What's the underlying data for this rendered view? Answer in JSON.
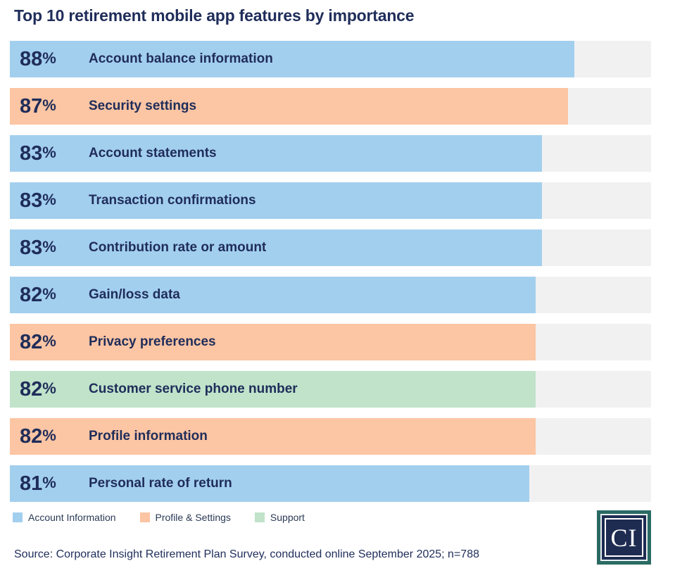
{
  "header": {
    "title": "Top 10 retirement mobile app features by importance"
  },
  "chart_data": {
    "type": "bar",
    "orientation": "horizontal",
    "title": "Top 10 retirement mobile app features by importance",
    "unit": "%",
    "xlim": [
      0,
      100
    ],
    "grid": false,
    "legend_position": "bottom-left",
    "categories": [
      "Account balance information",
      "Security settings",
      "Account statements",
      "Transaction confirmations",
      "Contribution rate or amount",
      "Gain/loss data",
      "Privacy preferences",
      "Customer service phone number",
      "Profile information",
      "Personal rate of return"
    ],
    "values": [
      88,
      87,
      83,
      83,
      83,
      82,
      82,
      82,
      82,
      81
    ],
    "series_of_each_bar": [
      "Account Information",
      "Profile & Settings",
      "Account Information",
      "Account Information",
      "Account Information",
      "Account Information",
      "Profile & Settings",
      "Support",
      "Profile & Settings",
      "Account Information"
    ],
    "series_colors": {
      "Account Information": "#a3cfee",
      "Profile & Settings": "#fcc5a3",
      "Support": "#c0e3ca"
    }
  },
  "bars": [
    {
      "value": "88",
      "unit": "%",
      "label": "Account balance information",
      "category": "account"
    },
    {
      "value": "87",
      "unit": "%",
      "label": "Security settings",
      "category": "profile"
    },
    {
      "value": "83",
      "unit": "%",
      "label": "Account statements",
      "category": "account"
    },
    {
      "value": "83",
      "unit": "%",
      "label": "Transaction confirmations",
      "category": "account"
    },
    {
      "value": "83",
      "unit": "%",
      "label": "Contribution rate or amount",
      "category": "account"
    },
    {
      "value": "82",
      "unit": "%",
      "label": "Gain/loss data",
      "category": "account"
    },
    {
      "value": "82",
      "unit": "%",
      "label": "Privacy preferences",
      "category": "profile"
    },
    {
      "value": "82",
      "unit": "%",
      "label": "Customer service phone number",
      "category": "support"
    },
    {
      "value": "82",
      "unit": "%",
      "label": "Profile information",
      "category": "profile"
    },
    {
      "value": "81",
      "unit": "%",
      "label": "Personal rate of return",
      "category": "account"
    }
  ],
  "legend": {
    "items": [
      {
        "label": "Account Information",
        "key": "account",
        "color": "#a3cfee"
      },
      {
        "label": "Profile & Settings",
        "key": "profile",
        "color": "#fcc5a3"
      },
      {
        "label": "Support",
        "key": "support",
        "color": "#c0e3ca"
      }
    ]
  },
  "logo": {
    "monogram": "CI"
  },
  "footer": {
    "source": "Source: Corporate Insight Retirement Plan Survey, conducted online September 2025; n=788"
  },
  "colors": {
    "account": "#a3cfee",
    "profile": "#fcc5a3",
    "support": "#c0e3ca",
    "track": "#f1f1f2",
    "text": "#1f2d5a",
    "logo_teal": "#2a6a63",
    "logo_navy": "#1e2c52"
  }
}
